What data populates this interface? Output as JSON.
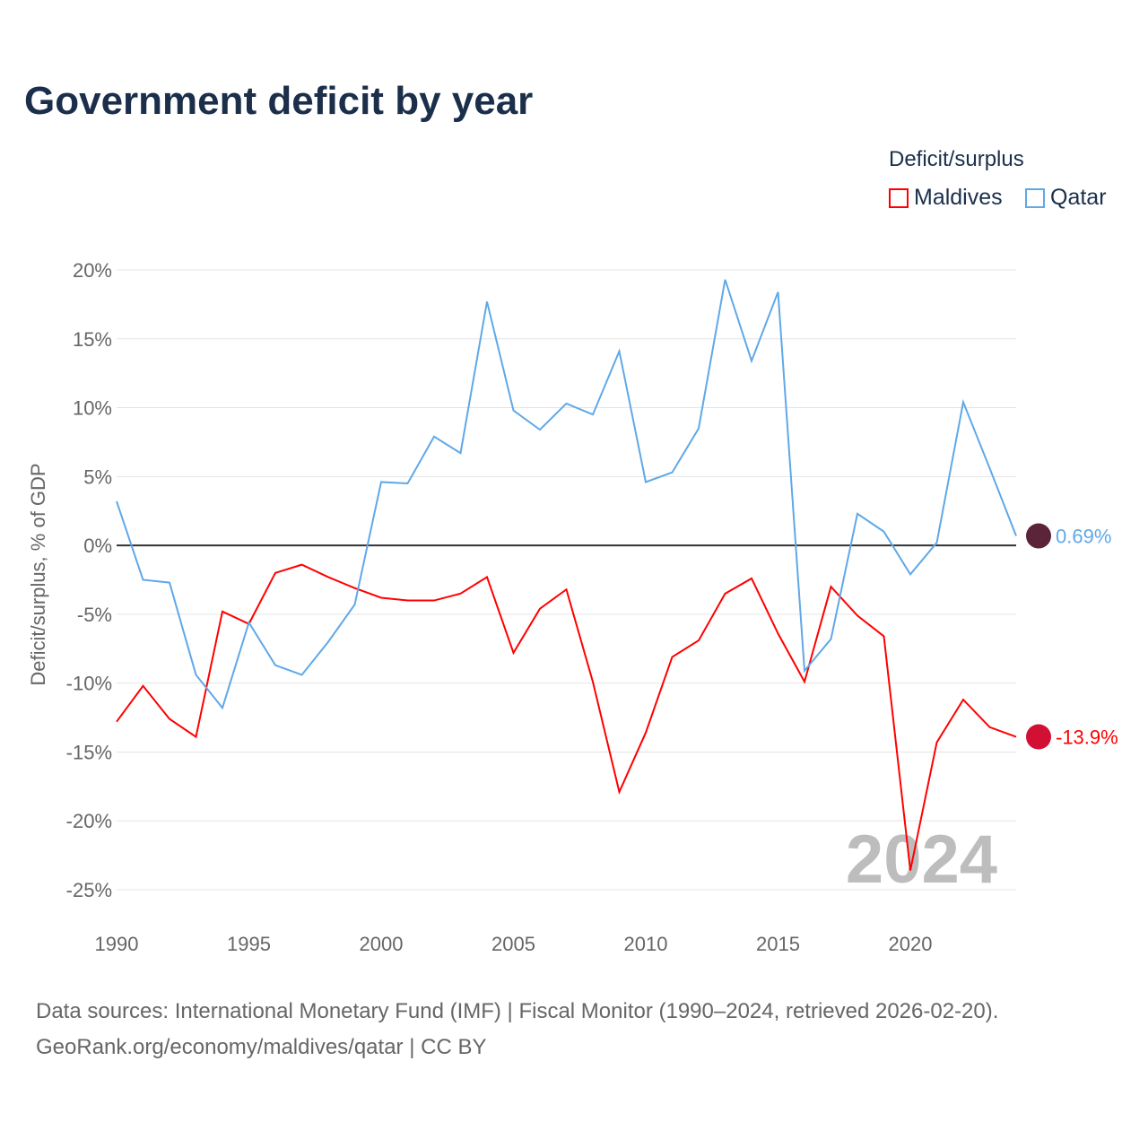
{
  "title": "Government deficit by year",
  "legend": {
    "title": "Deficit/surplus",
    "items": [
      "Maldives",
      "Qatar"
    ]
  },
  "source": {
    "line1": "Data sources: International Monetary Fund (IMF) | Fiscal Monitor (1990–2024, retrieved 2026-02-20).",
    "line2": "GeoRank.org/economy/maldives/qatar | CC BY"
  },
  "colors": {
    "Maldives": "#ff0000",
    "Qatar": "#5fa8e8"
  },
  "chart_data": {
    "type": "line",
    "title": "Government deficit by year",
    "xlabel": "",
    "ylabel": "Deficit/surplus, % of GDP",
    "xlim": [
      1990,
      2024
    ],
    "ylim": [
      -25,
      20
    ],
    "xticks": [
      "1990",
      "1995",
      "2000",
      "2005",
      "2010",
      "2015",
      "2020"
    ],
    "yticks": [
      "20%",
      "15%",
      "10%",
      "5%",
      "0%",
      "-5%",
      "-10%",
      "-15%",
      "-20%",
      "-25%"
    ],
    "ytick_values": [
      20,
      15,
      10,
      5,
      0,
      -5,
      -10,
      -15,
      -20,
      -25
    ],
    "year_label": "2024",
    "x": [
      1990,
      1991,
      1992,
      1993,
      1994,
      1995,
      1996,
      1997,
      1998,
      1999,
      2000,
      2001,
      2002,
      2003,
      2004,
      2005,
      2006,
      2007,
      2008,
      2009,
      2010,
      2011,
      2012,
      2013,
      2014,
      2015,
      2016,
      2017,
      2018,
      2019,
      2020,
      2021,
      2022,
      2023,
      2024
    ],
    "series": [
      {
        "name": "Maldives",
        "end_label": "-13.9%",
        "values": [
          -12.8,
          -10.2,
          -12.6,
          -13.9,
          -4.8,
          -5.7,
          -2.0,
          -1.4,
          -2.3,
          -3.1,
          -3.8,
          -4.0,
          -4.0,
          -3.5,
          -2.3,
          -7.8,
          -4.6,
          -3.2,
          -9.9,
          -17.9,
          -13.6,
          -8.1,
          -6.9,
          -3.5,
          -2.4,
          -6.4,
          -9.9,
          -3.0,
          -5.1,
          -6.6,
          -23.6,
          -14.3,
          -11.2,
          -13.2,
          -13.9
        ]
      },
      {
        "name": "Qatar",
        "end_label": "0.69%",
        "values": [
          3.2,
          -2.5,
          -2.7,
          -9.4,
          -11.8,
          -5.6,
          -8.7,
          -9.4,
          -7.0,
          -4.3,
          4.6,
          4.5,
          7.9,
          6.7,
          17.7,
          9.8,
          8.4,
          10.3,
          9.5,
          14.1,
          4.6,
          5.3,
          8.5,
          19.3,
          13.4,
          18.4,
          -9.1,
          -6.8,
          2.3,
          1.0,
          -2.1,
          0.2,
          10.4,
          5.6,
          0.69
        ]
      }
    ],
    "grid": true,
    "legend_position": "top-right"
  }
}
